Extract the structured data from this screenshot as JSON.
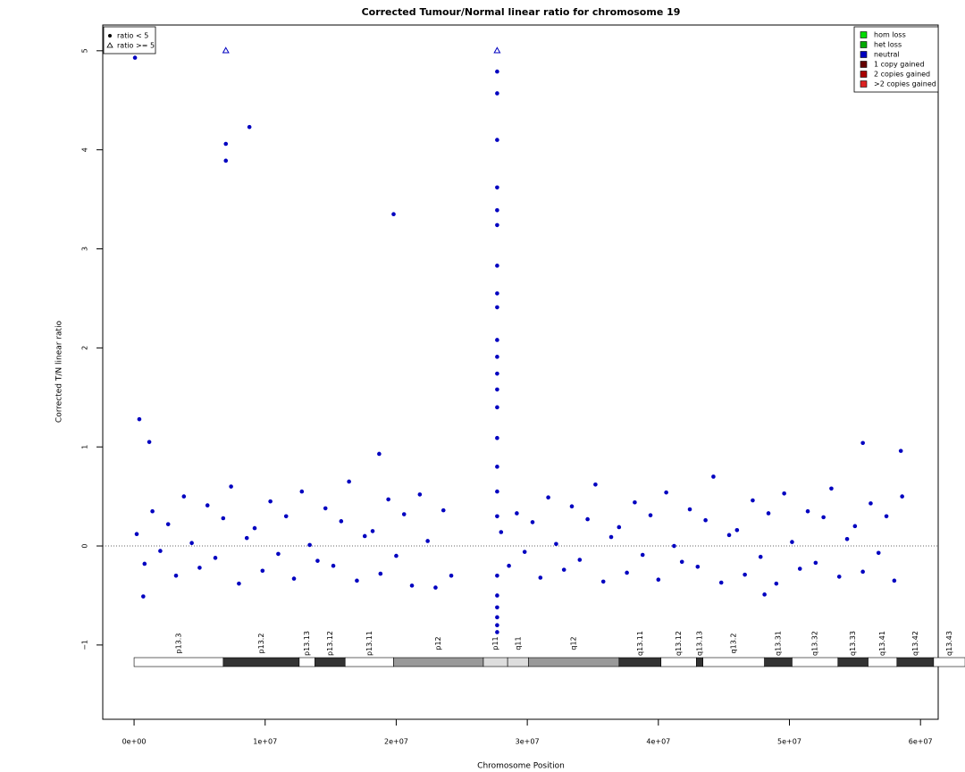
{
  "chart_data": {
    "type": "scatter",
    "title": "Corrected Tumour/Normal linear ratio for chromosome  19",
    "x_label": "Chromosome Position",
    "y_label": "Corrected T/N linear ratio",
    "xlim": [
      -2390000,
      61350000
    ],
    "ylim": [
      -1.75,
      5.26
    ],
    "xticks": [
      {
        "value": 0,
        "label": "0e+00"
      },
      {
        "value": 10000000,
        "label": "1e+07"
      },
      {
        "value": 20000000,
        "label": "2e+07"
      },
      {
        "value": 30000000,
        "label": "3e+07"
      },
      {
        "value": 40000000,
        "label": "4e+07"
      },
      {
        "value": 50000000,
        "label": "5e+07"
      },
      {
        "value": 60000000,
        "label": "6e+07"
      }
    ],
    "yticks": [
      {
        "value": -1,
        "label": "−1"
      },
      0,
      1,
      2,
      3,
      4,
      5
    ],
    "hline": 0,
    "triangle_from": 5,
    "series": [
      {
        "color": "#0000c0",
        "x": [
          200000,
          800000,
          1400000,
          2000000,
          2600000,
          3200000,
          3800000,
          4400000,
          5000000,
          5600000,
          6200000,
          6800000,
          7400000,
          8000000,
          8600000,
          9200000,
          9800000,
          10400000,
          11000000,
          11600000,
          12200000,
          12800000,
          13400000,
          14000000,
          14600000,
          15200000,
          15800000,
          16400000,
          17000000,
          17600000,
          18200000,
          18800000,
          19400000,
          20000000,
          20600000,
          21200000,
          21800000,
          22400000,
          23000000,
          23600000,
          24200000,
          28000000,
          28600000,
          29200000,
          29800000,
          30400000,
          31000000,
          31600000,
          32200000,
          32800000,
          33400000,
          34000000,
          34600000,
          35200000,
          35800000,
          36400000,
          37000000,
          37600000,
          38200000,
          38800000,
          39400000,
          40000000,
          40600000,
          41200000,
          41800000,
          42400000,
          43000000,
          43600000,
          44200000,
          44800000,
          45400000,
          46000000,
          46600000,
          47200000,
          47800000,
          48400000,
          49000000,
          49600000,
          50200000,
          50800000,
          51400000,
          52000000,
          52600000,
          53200000,
          53800000,
          54400000,
          55000000,
          55600000,
          56200000,
          56800000,
          57400000,
          58000000,
          58600000,
          70000,
          7000000,
          7000000,
          7000000,
          8800000,
          19800000,
          400000,
          1160000,
          18700000,
          55600000,
          58500000,
          700000,
          48100000,
          27700000,
          27700000,
          27700000,
          27700000,
          27700000,
          27700000,
          27700000,
          27700000,
          27700000,
          27700000,
          27700000,
          27700000,
          27700000,
          27700000,
          27700000,
          27700000,
          27700000,
          27700000,
          27700000,
          27700000,
          27700000,
          27700000,
          27700000,
          27700000,
          27700000
        ],
        "values": [
          0.12,
          -0.18,
          0.35,
          -0.05,
          0.22,
          -0.3,
          0.5,
          0.03,
          -0.22,
          0.41,
          -0.12,
          0.28,
          0.6,
          -0.38,
          0.08,
          0.18,
          -0.25,
          0.45,
          -0.08,
          0.3,
          -0.33,
          0.55,
          0.01,
          -0.15,
          0.38,
          -0.2,
          0.25,
          0.65,
          -0.35,
          0.1,
          0.15,
          -0.28,
          0.47,
          -0.1,
          0.32,
          -0.4,
          0.52,
          0.05,
          -0.42,
          0.36,
          -0.3,
          0.14,
          -0.2,
          0.33,
          -0.06,
          0.24,
          -0.32,
          0.49,
          0.02,
          -0.24,
          0.4,
          -0.14,
          0.27,
          0.62,
          -0.36,
          0.09,
          0.19,
          -0.27,
          0.44,
          -0.09,
          0.31,
          -0.34,
          0.54,
          0.0,
          -0.16,
          0.37,
          -0.21,
          0.26,
          0.7,
          -0.37,
          0.11,
          0.16,
          -0.29,
          0.46,
          -0.11,
          0.33,
          -0.38,
          0.53,
          0.04,
          -0.23,
          0.35,
          -0.17,
          0.29,
          0.58,
          -0.31,
          0.07,
          0.2,
          -0.26,
          0.43,
          -0.07,
          0.3,
          -0.35,
          0.5,
          4.93,
          5,
          4.06,
          3.89,
          4.23,
          3.35,
          1.28,
          1.05,
          0.93,
          1.04,
          0.96,
          -0.51,
          -0.49,
          5,
          4.79,
          4.57,
          4.1,
          3.62,
          3.39,
          3.24,
          2.83,
          2.55,
          2.41,
          2.08,
          1.91,
          1.74,
          1.58,
          1.4,
          1.09,
          0.8,
          0.55,
          0.3,
          -0.3,
          -0.5,
          -0.62,
          -0.72,
          -0.8,
          -0.87
        ]
      }
    ],
    "shape_legend": [
      "ratio < 5",
      "ratio >= 5"
    ],
    "legend": [
      {
        "name": "hom loss",
        "color": "#00dd00"
      },
      {
        "name": "het loss",
        "color": "#00aa00"
      },
      {
        "name": "neutral",
        "color": "#0000c0"
      },
      {
        "name": "1 copy gained",
        "color": "#660000"
      },
      {
        "name": "2 copies gained",
        "color": "#aa0000"
      },
      {
        "name": ">2 copies gained",
        "color": "#dd2222"
      }
    ],
    "bands": [
      {
        "name": "p13.3",
        "start": 0,
        "end": 6800000,
        "color": "#ffffff"
      },
      {
        "name": "p13.2",
        "start": 6800000,
        "end": 12600000,
        "color": "#333333"
      },
      {
        "name": "p13.13",
        "start": 12600000,
        "end": 13800000,
        "color": "#ffffff"
      },
      {
        "name": "p13.12",
        "start": 13800000,
        "end": 16100000,
        "color": "#333333"
      },
      {
        "name": "p13.11",
        "start": 16100000,
        "end": 19800000,
        "color": "#ffffff"
      },
      {
        "name": "p12",
        "start": 19800000,
        "end": 26650000,
        "color": "#999999"
      },
      {
        "name": "p11",
        "start": 26650000,
        "end": 28500000,
        "color": "#dddddd"
      },
      {
        "name": "q11",
        "start": 28500000,
        "end": 30100000,
        "color": "#dddddd"
      },
      {
        "name": "q12",
        "start": 30100000,
        "end": 37000000,
        "color": "#999999"
      },
      {
        "name": "q13.11",
        "start": 37000000,
        "end": 40200000,
        "color": "#333333"
      },
      {
        "name": "q13.12",
        "start": 40200000,
        "end": 42900000,
        "color": "#ffffff"
      },
      {
        "name": "q13.13",
        "start": 42900000,
        "end": 43400000,
        "color": "#333333"
      },
      {
        "name": "q13.2",
        "start": 43400000,
        "end": 48100000,
        "color": "#ffffff"
      },
      {
        "name": "q13.31",
        "start": 48100000,
        "end": 50200000,
        "color": "#333333"
      },
      {
        "name": "q13.32",
        "start": 50200000,
        "end": 53700000,
        "color": "#ffffff"
      },
      {
        "name": "q13.33",
        "start": 53700000,
        "end": 56000000,
        "color": "#333333"
      },
      {
        "name": "q13.41",
        "start": 56000000,
        "end": 58200000,
        "color": "#ffffff"
      },
      {
        "name": "q13.42",
        "start": 58200000,
        "end": 61000000,
        "color": "#333333"
      },
      {
        "name": "q13.43",
        "start": 61000000,
        "end": 63400000,
        "color": "#ffffff"
      }
    ]
  }
}
